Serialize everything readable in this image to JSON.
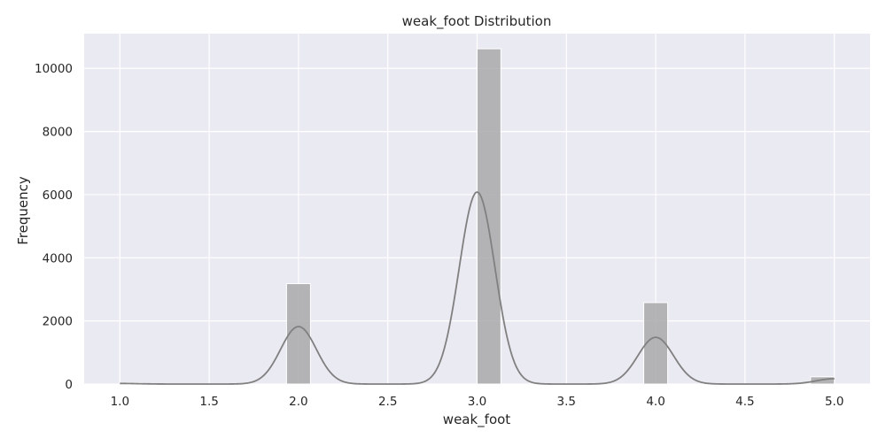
{
  "chart_data": {
    "type": "bar",
    "title": "weak_foot Distribution",
    "xlabel": "weak_foot",
    "ylabel": "Frequency",
    "xlim": [
      0.8,
      5.2
    ],
    "ylim": [
      0,
      11100
    ],
    "xticks": [
      "1.0",
      "1.5",
      "2.0",
      "2.5",
      "3.0",
      "3.5",
      "4.0",
      "4.5",
      "5.0"
    ],
    "yticks": [
      "0",
      "2000",
      "4000",
      "6000",
      "8000",
      "10000"
    ],
    "grid": true,
    "bars": [
      {
        "x0": 1.0,
        "x1": 1.133,
        "value": 40
      },
      {
        "x0": 1.933,
        "x1": 2.067,
        "value": 3180
      },
      {
        "x0": 3.0,
        "x1": 3.133,
        "value": 10620
      },
      {
        "x0": 3.933,
        "x1": 4.067,
        "value": 2580
      },
      {
        "x0": 4.867,
        "x1": 5.0,
        "value": 230
      }
    ],
    "kde": {
      "components": [
        {
          "mean": 1.0,
          "peak": 20
        },
        {
          "mean": 2.0,
          "peak": 1820
        },
        {
          "mean": 3.0,
          "peak": 6080
        },
        {
          "mean": 4.0,
          "peak": 1480
        },
        {
          "mean": 5.0,
          "peak": 170
        }
      ],
      "bandwidth": 0.1
    },
    "colors": {
      "bar": "#a9a9ab",
      "kde": "#808080",
      "background": "#eaeaf2",
      "grid": "#ffffff"
    }
  }
}
